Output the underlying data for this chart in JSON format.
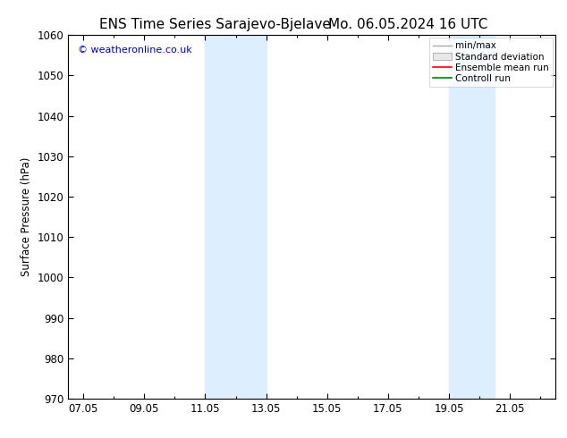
{
  "title_left": "ENS Time Series Sarajevo-Bjelave",
  "title_right": "Mo. 06.05.2024 16 UTC",
  "ylabel": "Surface Pressure (hPa)",
  "ylim": [
    970,
    1060
  ],
  "ytick_step": 10,
  "x_tick_labels": [
    "07.05",
    "09.05",
    "11.05",
    "13.05",
    "15.05",
    "17.05",
    "19.05",
    "21.05"
  ],
  "x_tick_positions": [
    0,
    2,
    4,
    6,
    8,
    10,
    12,
    14
  ],
  "xlim": [
    -0.5,
    15.5
  ],
  "shaded_bands": [
    {
      "x_start": 4.0,
      "x_end": 6.0
    },
    {
      "x_start": 12.0,
      "x_end": 13.5
    }
  ],
  "shade_color": "#ddeeff",
  "bg_color": "#ffffff",
  "copyright_text": "© weatheronline.co.uk",
  "copyright_color": "#0000cc",
  "legend_labels": [
    "min/max",
    "Standard deviation",
    "Ensemble mean run",
    "Controll run"
  ],
  "legend_colors": [
    "#aaaaaa",
    "#cccccc",
    "#ff0000",
    "#008000"
  ],
  "tick_color": "#000000",
  "font_color": "#000000",
  "font_size": 8.5,
  "title_font_size": 11
}
